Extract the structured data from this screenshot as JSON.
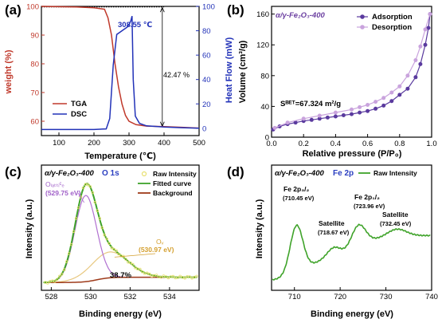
{
  "chart_data": [
    {
      "panel": "(a)",
      "type": "line",
      "xlabel": "Temperature (℃)",
      "ylabel_left": "weight (%)",
      "ylabel_right": "Heat Flow (mW)",
      "xlim": [
        50,
        500
      ],
      "ylim_left": [
        55,
        100
      ],
      "ylim_right": [
        -6,
        100
      ],
      "x_ticks": [
        100,
        200,
        300,
        400,
        500
      ],
      "y_ticks_left": [
        60,
        70,
        80,
        90,
        100
      ],
      "y_ticks_right": [
        0,
        20,
        40,
        60,
        80,
        100
      ],
      "annotations": [
        "308.55 ℃",
        "42.47 %"
      ],
      "legend": [
        "TGA",
        "DSC"
      ],
      "series": [
        {
          "name": "TGA",
          "axis": "left",
          "color": "#c0392b",
          "points": [
            [
              50,
              100
            ],
            [
              150,
              99.8
            ],
            [
              200,
              99.5
            ],
            [
              230,
              99
            ],
            [
              240,
              96
            ],
            [
              250,
              90
            ],
            [
              260,
              80
            ],
            [
              270,
              72
            ],
            [
              280,
              66
            ],
            [
              290,
              62
            ],
            [
              300,
              60
            ],
            [
              320,
              58.8
            ],
            [
              350,
              58.3
            ],
            [
              400,
              58.1
            ],
            [
              450,
              57.9
            ],
            [
              500,
              57.6
            ]
          ]
        },
        {
          "name": "DSC",
          "axis": "right",
          "color": "#2232b8",
          "points": [
            [
              50,
              -1
            ],
            [
              200,
              -1
            ],
            [
              235,
              -0.5
            ],
            [
              245,
              8
            ],
            [
              255,
              52
            ],
            [
              265,
              77
            ],
            [
              275,
              79
            ],
            [
              285,
              81
            ],
            [
              295,
              83
            ],
            [
              300,
              85
            ],
            [
              305,
              88
            ],
            [
              308.55,
              92
            ],
            [
              312,
              40
            ],
            [
              318,
              10
            ],
            [
              330,
              4
            ],
            [
              350,
              2
            ],
            [
              400,
              1
            ],
            [
              450,
              0.5
            ],
            [
              500,
              0
            ]
          ]
        }
      ]
    },
    {
      "panel": "(b)",
      "type": "line",
      "title": "α/γ-Fe₂O₃-400",
      "xlabel": "Relative pressure (P/P₀)",
      "ylabel": "Volume (cm³/g)",
      "xlim": [
        0,
        1.0
      ],
      "ylim": [
        0,
        170
      ],
      "x_ticks": [
        0.0,
        0.2,
        0.4,
        0.6,
        0.8,
        1.0
      ],
      "y_ticks": [
        0,
        40,
        80,
        120,
        160
      ],
      "annotation": "S_BET=67.324 m²/g",
      "legend": [
        "Adsorption",
        "Desorption"
      ],
      "series": [
        {
          "name": "Adsorption",
          "color": "#5a3a9e",
          "points": [
            [
              0.01,
              10
            ],
            [
              0.05,
              14
            ],
            [
              0.1,
              17
            ],
            [
              0.15,
              19
            ],
            [
              0.2,
              21
            ],
            [
              0.25,
              22.5
            ],
            [
              0.3,
              24
            ],
            [
              0.35,
              25.5
            ],
            [
              0.4,
              27
            ],
            [
              0.45,
              28.5
            ],
            [
              0.5,
              30
            ],
            [
              0.55,
              32
            ],
            [
              0.6,
              34
            ],
            [
              0.65,
              37
            ],
            [
              0.7,
              41
            ],
            [
              0.75,
              47
            ],
            [
              0.8,
              55
            ],
            [
              0.85,
              63
            ],
            [
              0.9,
              78
            ],
            [
              0.93,
              95
            ],
            [
              0.96,
              120
            ],
            [
              0.98,
              142
            ],
            [
              0.99,
              160
            ]
          ]
        },
        {
          "name": "Desorption",
          "color": "#c9a3dd",
          "points": [
            [
              0.02,
              12
            ],
            [
              0.1,
              19
            ],
            [
              0.2,
              24
            ],
            [
              0.3,
              28
            ],
            [
              0.4,
              32
            ],
            [
              0.5,
              36
            ],
            [
              0.55,
              39
            ],
            [
              0.6,
              42
            ],
            [
              0.65,
              46
            ],
            [
              0.7,
              51
            ],
            [
              0.75,
              58
            ],
            [
              0.8,
              66
            ],
            [
              0.85,
              80
            ],
            [
              0.9,
              100
            ],
            [
              0.93,
              118
            ],
            [
              0.96,
              140
            ],
            [
              0.99,
              160
            ]
          ]
        }
      ]
    },
    {
      "panel": "(c)",
      "type": "line",
      "title": "α/γ-Fe₂O₃-400",
      "element_label": "O 1s",
      "xlabel": "Binding energy (eV)",
      "ylabel": "Intensity (a.u.)",
      "xlim": [
        527.5,
        535.5
      ],
      "x_ticks": [
        528,
        530,
        532,
        534
      ],
      "peaks": [
        {
          "name": "O_lattice",
          "position_eV": 529.75,
          "label": "(529.75 eV)",
          "color": "#b070d0"
        },
        {
          "name": "O_v",
          "position_eV": 530.97,
          "label": "(530.97 eV)",
          "color": "#e0b060"
        }
      ],
      "annotation": "38.7%",
      "legend": [
        "Raw Intensity",
        "Fitted curve",
        "Background"
      ],
      "series_colors": {
        "raw": "#e8e070",
        "fitted": "#3fa32a",
        "background": "#9e3a1a"
      }
    },
    {
      "panel": "(d)",
      "type": "line",
      "title": "α/γ-Fe₂O₃-400",
      "element_label": "Fe 2p",
      "xlabel": "Binding energy (eV)",
      "ylabel": "Intensity (a.u.)",
      "xlim": [
        705,
        740
      ],
      "x_ticks": [
        710,
        720,
        730,
        740
      ],
      "legend": [
        "Raw Intensity"
      ],
      "color": "#3fa32a",
      "peaks": [
        {
          "name": "Fe 2p3/2",
          "position_eV": 710.45,
          "label": "(710.45 eV)"
        },
        {
          "name": "Satellite",
          "position_eV": 718.67,
          "label": "(718.67 eV)"
        },
        {
          "name": "Fe 2p1/2",
          "position_eV": 723.96,
          "label": "(723.96 eV)"
        },
        {
          "name": "Satellite",
          "position_eV": 732.45,
          "label": "(732.45 eV)"
        }
      ]
    }
  ],
  "labels": {
    "a": {
      "panel": "(a)",
      "xlabel": "Temperature (℃)",
      "ylabel_left": "weight (%)",
      "ylabel_right": "Heat Flow (mW)",
      "peak": "308.55 ℃",
      "loss": "42.47 %",
      "leg1": "TGA",
      "leg2": "DSC",
      "xt": [
        "100",
        "200",
        "300",
        "400",
        "500"
      ],
      "ylt": [
        "60",
        "70",
        "80",
        "90",
        "100"
      ],
      "yrt": [
        "0",
        "20",
        "40",
        "60",
        "80",
        "100"
      ]
    },
    "b": {
      "panel": "(b)",
      "title": "α/γ-Fe₂O₃-400",
      "xlabel": "Relative pressure (P/P₀)",
      "ylabel": "Volume (cm³/g)",
      "bet": "Sᴮᴱᵀ=67.324 m²/g",
      "leg1": "Adsorption",
      "leg2": "Desorption",
      "xt": [
        "0.0",
        "0.2",
        "0.4",
        "0.6",
        "0.8",
        "1.0"
      ],
      "yt": [
        "0",
        "40",
        "80",
        "120",
        "160"
      ]
    },
    "c": {
      "panel": "(c)",
      "title": "α/γ-Fe₂O₃-400",
      "elem": "O 1s",
      "xlabel": "Binding energy (eV)",
      "ylabel": "Intensity (a.u.)",
      "olat": "Oₗₐₜₜᵢᶜₑ",
      "olat_e": "(529.75 eV)",
      "ov": "Oᵥ",
      "ov_e": "(530.97 eV)",
      "pct": "38.7%",
      "leg1": "Raw Intensity",
      "leg2": "Fitted curve",
      "leg3": "Background",
      "xt": [
        "528",
        "530",
        "532",
        "534"
      ]
    },
    "d": {
      "panel": "(d)",
      "title": "α/γ-Fe₂O₃-400",
      "elem": "Fe 2p",
      "xlabel": "Binding energy (eV)",
      "ylabel": "Intensity (a.u.)",
      "p1": "Fe 2p₃/₂",
      "p1e": "(710.45 eV)",
      "s1": "Satellite",
      "s1e": "(718.67 eV)",
      "p2": "Fe 2p₁/₂",
      "p2e": "(723.96 eV)",
      "s2": "Satellite",
      "s2e": "(732.45 eV)",
      "leg1": "Raw Intensity",
      "xt": [
        "710",
        "720",
        "730",
        "740"
      ]
    }
  }
}
